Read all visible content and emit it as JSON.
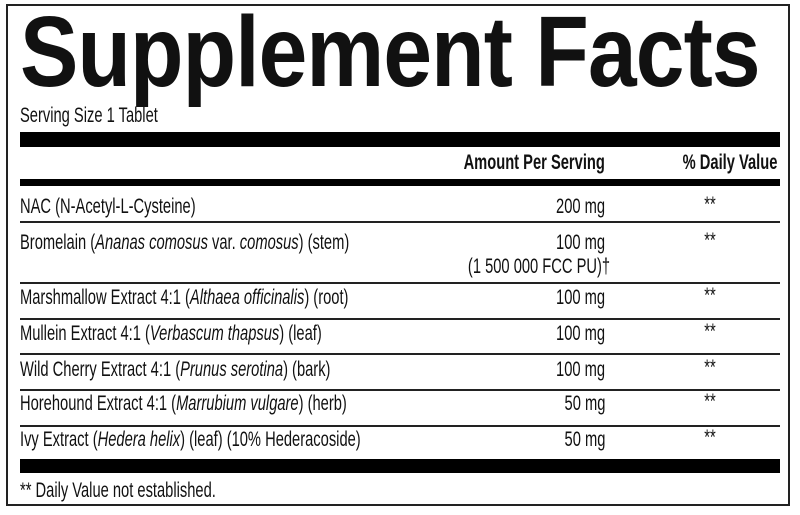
{
  "title": "Supplement Facts",
  "serving_size": "Serving Size 1 Tablet",
  "headers": {
    "amount": "Amount Per Serving",
    "daily_value": "% Daily Value"
  },
  "rows": [
    {
      "name": [
        {
          "t": "NAC (N-Acetyl-L-Cysteine)"
        }
      ],
      "amount": "200 mg",
      "dv": "**"
    },
    {
      "name": [
        {
          "t": "Bromelain ("
        },
        {
          "t": "Ananas comosus",
          "i": true
        },
        {
          "t": " var. "
        },
        {
          "t": "comosus",
          "i": true
        },
        {
          "t": ") (stem)"
        }
      ],
      "amount": "100 mg",
      "amount_note": "(1 500 000 FCC PU)†",
      "dv": "**"
    },
    {
      "name": [
        {
          "t": "Marshmallow Extract 4:1 ("
        },
        {
          "t": "Althaea officinalis",
          "i": true
        },
        {
          "t": ") (root)"
        }
      ],
      "amount": "100 mg",
      "dv": "**"
    },
    {
      "name": [
        {
          "t": "Mullein Extract 4:1 ("
        },
        {
          "t": "Verbascum thapsus",
          "i": true
        },
        {
          "t": ") (leaf)"
        }
      ],
      "amount": "100 mg",
      "dv": "**"
    },
    {
      "name": [
        {
          "t": "Wild Cherry Extract 4:1 ("
        },
        {
          "t": "Prunus serotina",
          "i": true
        },
        {
          "t": ") (bark)"
        }
      ],
      "amount": "100 mg",
      "dv": "**"
    },
    {
      "name": [
        {
          "t": "Horehound Extract 4:1 ("
        },
        {
          "t": "Marrubium vulgare",
          "i": true
        },
        {
          "t": ") (herb)"
        }
      ],
      "amount": "50 mg",
      "dv": "**"
    },
    {
      "name": [
        {
          "t": "Ivy Extract ("
        },
        {
          "t": "Hedera helix",
          "i": true
        },
        {
          "t": ") (leaf) (10% Hederacoside)"
        }
      ],
      "amount": "50 mg",
      "dv": "**"
    }
  ],
  "footnote": "** Daily Value not established."
}
